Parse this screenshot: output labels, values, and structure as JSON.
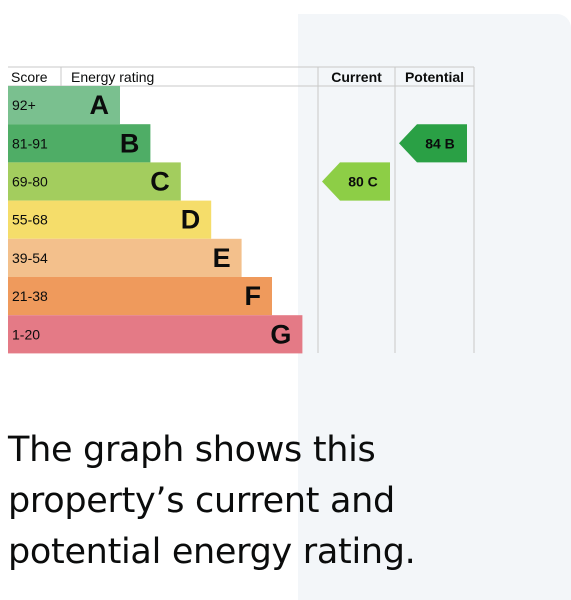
{
  "chart_data": {
    "type": "bar",
    "headers": {
      "score": "Score",
      "energy_rating": "Energy rating",
      "current": "Current",
      "potential": "Potential"
    },
    "bands": [
      {
        "score": "92+",
        "letter": "A",
        "color": "#7ac08f",
        "bar_color": "#1aa05a"
      },
      {
        "score": "81-91",
        "letter": "B",
        "color": "#4fad66",
        "bar_color": "#2aa045"
      },
      {
        "score": "69-80",
        "letter": "C",
        "color": "#a3cd5e",
        "bar_color": "#8dce46"
      },
      {
        "score": "55-68",
        "letter": "D",
        "color": "#f5dd6a",
        "bar_color": "#ffd500"
      },
      {
        "score": "39-54",
        "letter": "E",
        "color": "#f3c08c",
        "bar_color": "#fcaa65"
      },
      {
        "score": "21-38",
        "letter": "F",
        "color": "#ef9a5c",
        "bar_color": "#ef8023"
      },
      {
        "score": "1-20",
        "letter": "G",
        "color": "#e47a86",
        "bar_color": "#e9153b"
      }
    ],
    "current": {
      "value": 80,
      "letter": "C",
      "label": "80 C",
      "band": 2,
      "color": "#8dce46"
    },
    "potential": {
      "value": 84,
      "letter": "B",
      "label": "84 B",
      "band": 1,
      "color": "#2aa045"
    }
  },
  "caption": "The graph shows this property’s current and potential energy rating."
}
